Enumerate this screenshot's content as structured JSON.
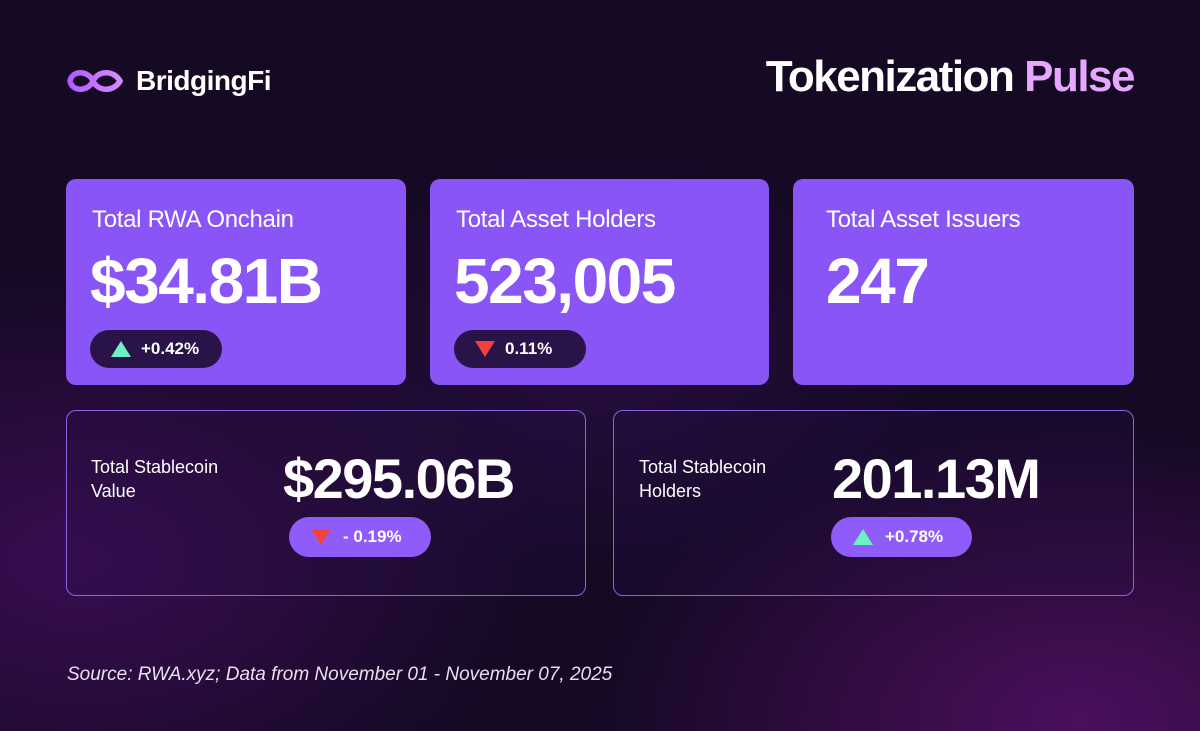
{
  "brand": {
    "name": "BridgingFi",
    "logo_icon": "infinity-link-icon"
  },
  "title": {
    "part1": "Tokenization",
    "part2": "Pulse"
  },
  "colors": {
    "card_fill": "#8a55f7",
    "up": "#6ff0c2",
    "down": "#f3413f",
    "accent_title": "#e6a8ff"
  },
  "metrics_top": [
    {
      "label": "Total RWA Onchain",
      "value": "$34.81B",
      "change": "+0.42%",
      "direction": "up"
    },
    {
      "label": "Total Asset Holders",
      "value": "523,005",
      "change": "0.11%",
      "direction": "down"
    },
    {
      "label": "Total Asset Issuers",
      "value": "247"
    }
  ],
  "metrics_bottom": [
    {
      "label": "Total Stablecoin Value",
      "value": "$295.06B",
      "change": "- 0.19%",
      "direction": "down"
    },
    {
      "label": "Total Stablecoin Holders",
      "value": "201.13M",
      "change": "+0.78%",
      "direction": "up"
    }
  ],
  "source": "Source: RWA.xyz; Data from November 01 - November 07, 2025"
}
